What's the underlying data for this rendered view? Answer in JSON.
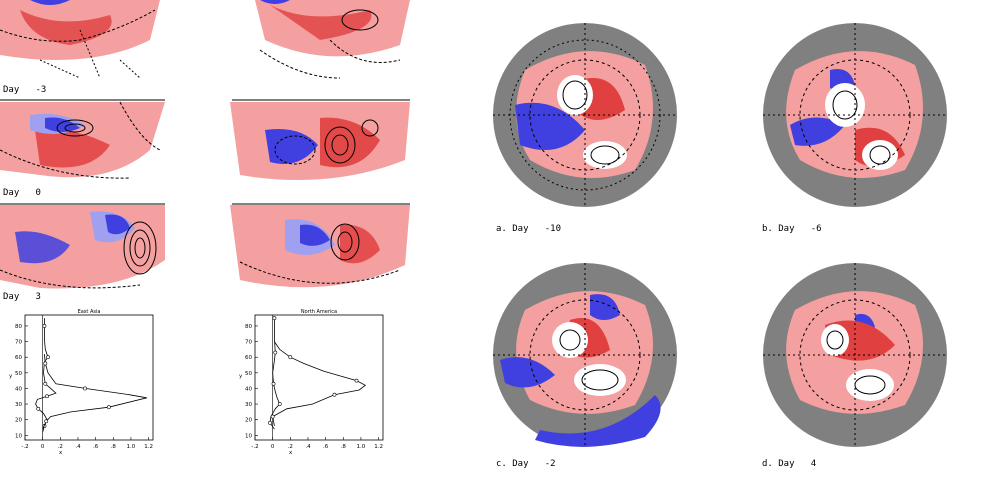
{
  "left_panels": {
    "row_labels": [
      "Day   -3",
      "Day   0",
      "Day   3"
    ]
  },
  "line_charts": [
    {
      "title": "East Asia",
      "xlabel": "x",
      "ylabel": "y",
      "xticks": [
        "-.2",
        "0",
        ".2",
        ".4",
        ".6",
        ".8",
        "1.0",
        "1.2"
      ],
      "yticks": [
        "10",
        "20",
        "30",
        "40",
        "50",
        "60",
        "70",
        "80"
      ],
      "xlim": [
        -0.2,
        1.25
      ],
      "ylim": [
        7,
        87
      ],
      "series": [
        {
          "values": [
            [
              0,
              12
            ],
            [
              0.02,
              16
            ],
            [
              0.05,
              20
            ],
            [
              0.01,
              24
            ],
            [
              -0.05,
              27
            ],
            [
              -0.08,
              30
            ],
            [
              -0.06,
              33
            ],
            [
              0.05,
              35
            ],
            [
              0.15,
              37
            ],
            [
              0.09,
              40
            ],
            [
              0.03,
              43
            ],
            [
              0.01,
              50
            ],
            [
              0.02,
              57
            ],
            [
              0.06,
              60
            ],
            [
              0.03,
              65
            ],
            [
              0.02,
              72
            ],
            [
              0.02,
              80
            ],
            [
              0.02,
              85
            ]
          ]
        },
        {
          "values": [
            [
              0,
              14
            ],
            [
              0.04,
              19
            ],
            [
              0.09,
              22
            ],
            [
              0.32,
              25
            ],
            [
              0.75,
              28
            ],
            [
              1.18,
              34
            ],
            [
              0.98,
              36
            ],
            [
              0.48,
              40
            ],
            [
              0.15,
              43
            ],
            [
              0.06,
              50
            ],
            [
              0.03,
              56
            ],
            [
              0.02,
              62
            ]
          ]
        }
      ]
    },
    {
      "title": "North America",
      "xlabel": "x",
      "ylabel": "y",
      "xticks": [
        "-.2",
        "0",
        ".2",
        ".4",
        ".6",
        ".8",
        "1.0",
        "1.2"
      ],
      "yticks": [
        "10",
        "20",
        "30",
        "40",
        "50",
        "60",
        "70",
        "80"
      ],
      "xlim": [
        -0.2,
        1.25
      ],
      "ylim": [
        7,
        87
      ],
      "series": [
        {
          "values": [
            [
              0.02,
              14
            ],
            [
              -0.03,
              18
            ],
            [
              -0.02,
              22
            ],
            [
              0.03,
              27
            ],
            [
              0.08,
              30
            ],
            [
              0.05,
              34
            ],
            [
              0.03,
              38
            ],
            [
              0.01,
              43
            ],
            [
              0.0,
              50
            ],
            [
              0.02,
              58
            ],
            [
              0.03,
              63
            ],
            [
              0.02,
              72
            ],
            [
              0.02,
              80
            ],
            [
              0.02,
              85
            ]
          ]
        },
        {
          "values": [
            [
              0.02,
              16
            ],
            [
              0.0,
              22
            ],
            [
              0.16,
              27
            ],
            [
              0.45,
              30
            ],
            [
              0.7,
              36
            ],
            [
              0.98,
              39
            ],
            [
              1.05,
              42
            ],
            [
              0.95,
              45
            ],
            [
              0.58,
              51
            ],
            [
              0.35,
              56
            ],
            [
              0.2,
              60
            ],
            [
              0.08,
              65
            ],
            [
              0.02,
              70
            ]
          ]
        }
      ]
    }
  ],
  "polar_maps": {
    "captions": [
      "a. Day   -10",
      "b. Day   -6",
      "c. Day   -2",
      "d. Day   4"
    ]
  },
  "colors": {
    "positive": "#f4a0a0",
    "positive_strong": "#e04040",
    "negative": "#4040e0",
    "negative_light": "#a0a0f0",
    "background_disk": "#808080"
  }
}
